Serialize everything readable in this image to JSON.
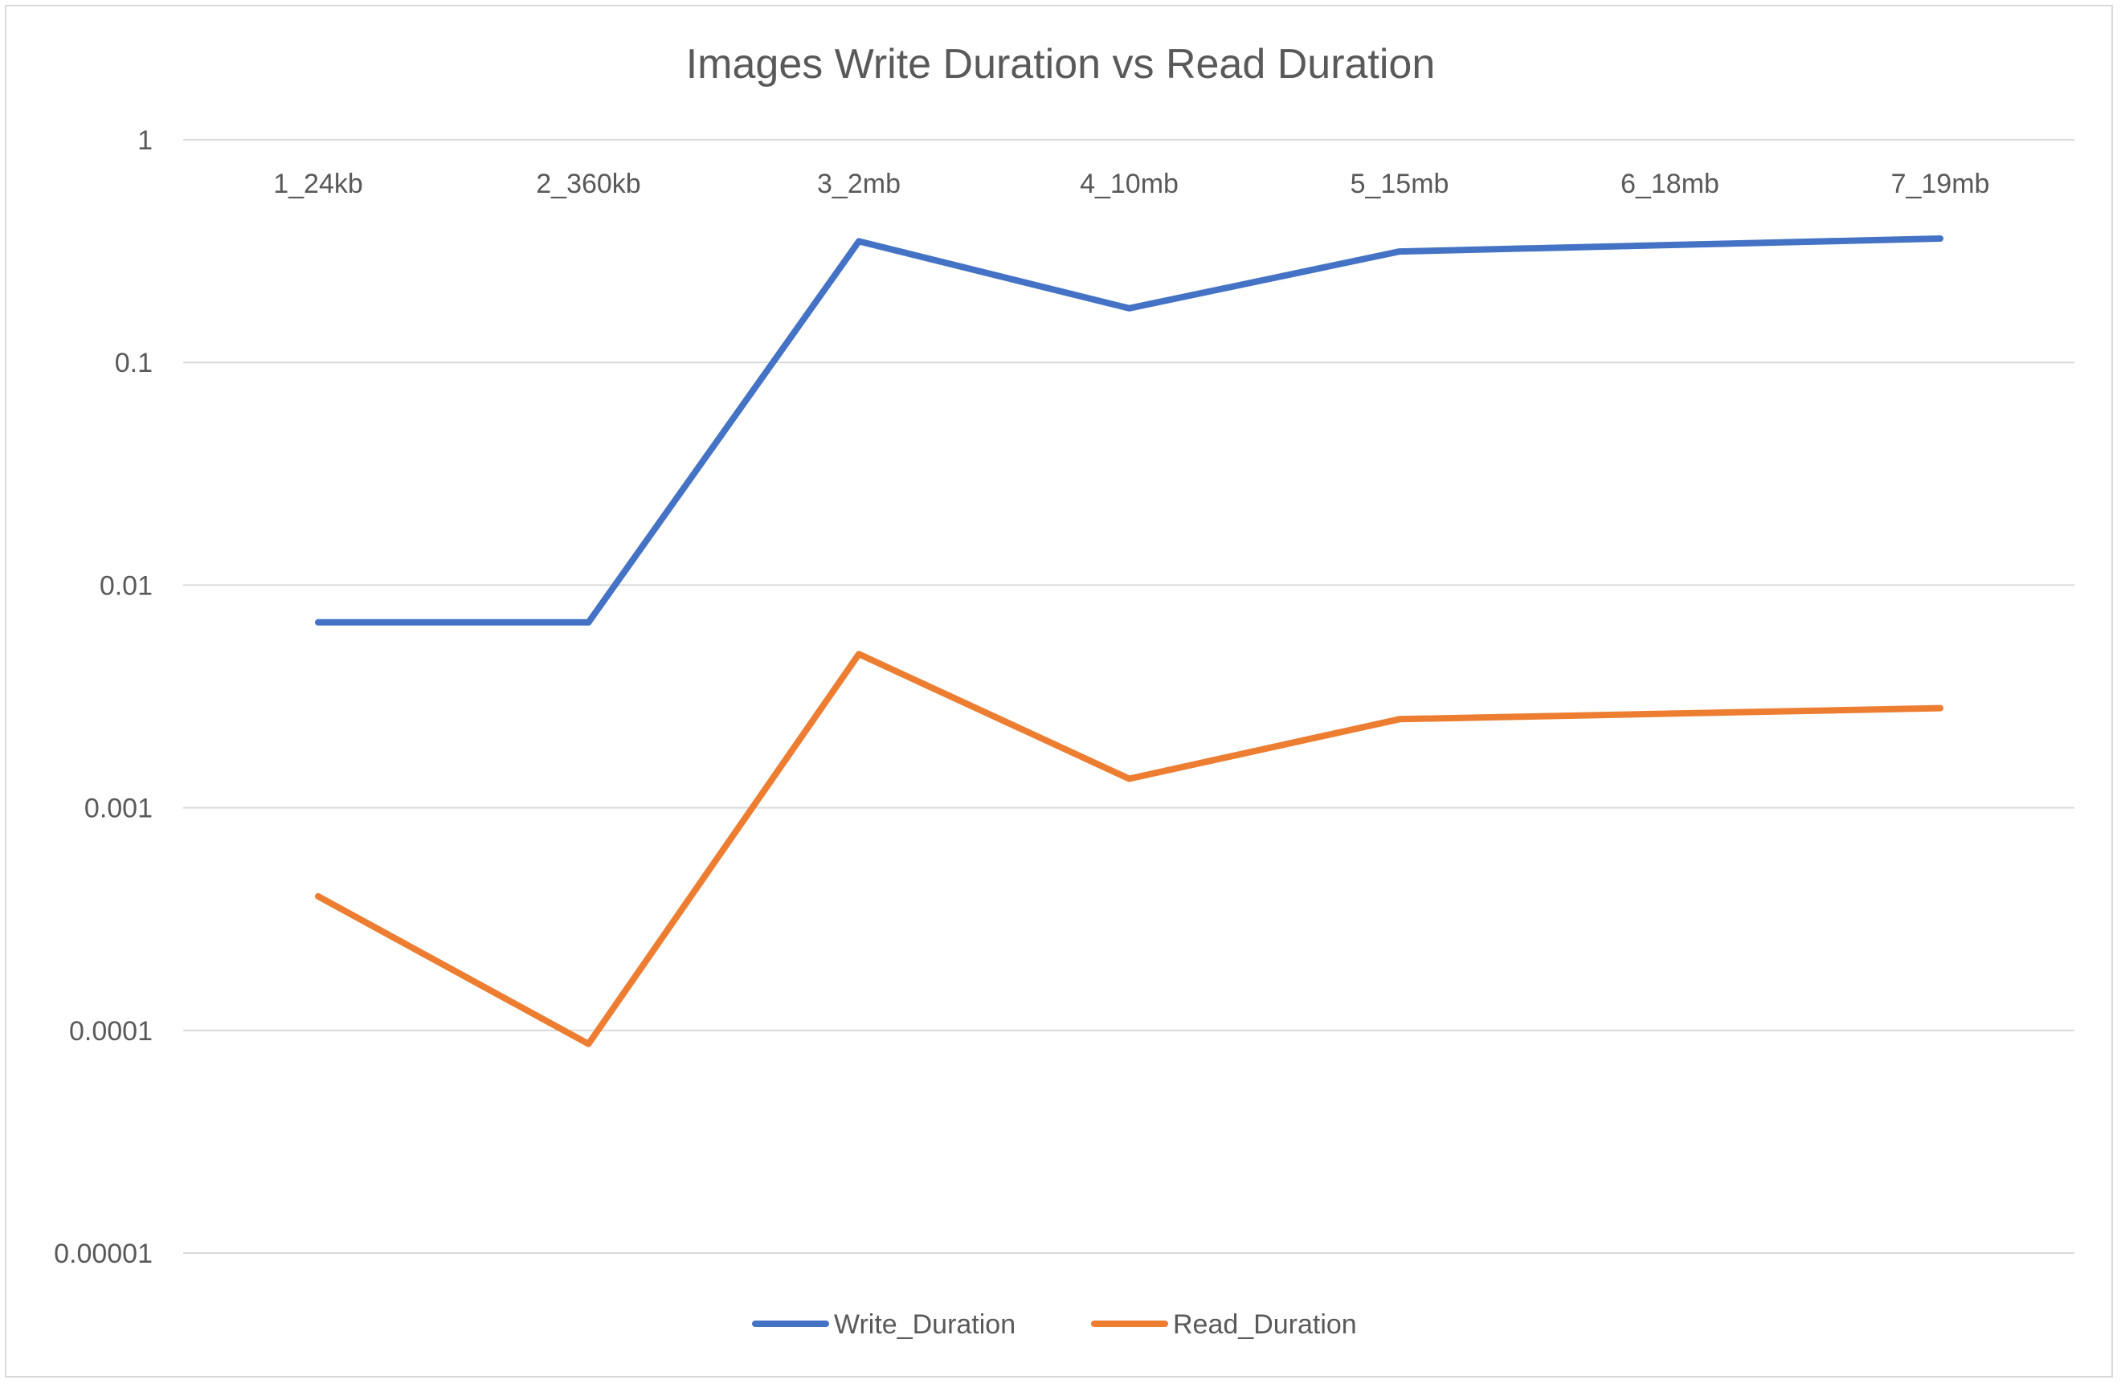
{
  "chart_data": {
    "type": "line",
    "title": "Images Write Duration vs Read Duration",
    "xlabel": "",
    "ylabel": "",
    "y_scale": "log",
    "ylim": [
      1e-05,
      1
    ],
    "y_ticks": [
      {
        "value": 1,
        "label": "1"
      },
      {
        "value": 0.1,
        "label": "0.1"
      },
      {
        "value": 0.01,
        "label": "0.01"
      },
      {
        "value": 0.001,
        "label": "0.001"
      },
      {
        "value": 0.0001,
        "label": "0.0001"
      },
      {
        "value": 1e-05,
        "label": "0.00001"
      }
    ],
    "grid": true,
    "legend": "bottom",
    "categories": [
      "1_24kb",
      "2_360kb",
      "3_2mb",
      "4_10mb",
      "5_15mb",
      "6_18mb",
      "7_19mb"
    ],
    "series": [
      {
        "name": "Write_Duration",
        "color": "#4472c4",
        "values": [
          0.0068,
          0.0068,
          0.35,
          0.175,
          0.315,
          null,
          0.36
        ]
      },
      {
        "name": "Read_Duration",
        "color": "#ed7d31",
        "values": [
          0.0004,
          8.7e-05,
          0.0049,
          0.00135,
          0.0025,
          null,
          0.0028
        ]
      }
    ]
  }
}
